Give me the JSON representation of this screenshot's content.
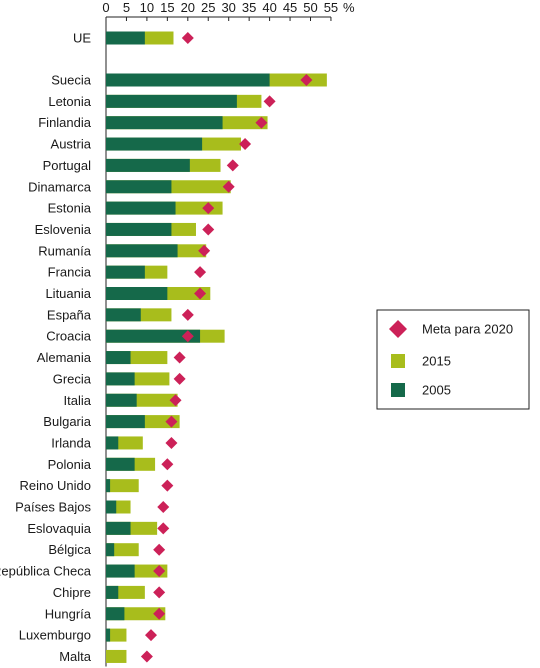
{
  "chart_data": {
    "type": "bar",
    "orientation": "horizontal",
    "stacked": false,
    "title": "",
    "xlabel": "",
    "ylabel": "",
    "unit": "%",
    "xlim": [
      0,
      55
    ],
    "xticks": [
      0,
      5,
      10,
      15,
      20,
      25,
      30,
      35,
      40,
      45,
      50,
      55
    ],
    "x_axis_position": "top",
    "grid": false,
    "legend_position": "right",
    "categories": [
      "UE",
      "Suecia",
      "Letonia",
      "Finlandia",
      "Austria",
      "Portugal",
      "Dinamarca",
      "Estonia",
      "Eslovenia",
      "Rumanía",
      "Francia",
      "Lituania",
      "España",
      "Croacia",
      "Alemania",
      "Grecia",
      "Italia",
      "Bulgaria",
      "Irlanda",
      "Polonia",
      "Reino Unido",
      "Países Bajos",
      "Eslovaquia",
      "Bélgica",
      "República Checa",
      "Chipre",
      "Hungría",
      "Luxemburgo",
      "Malta"
    ],
    "series": [
      {
        "name": "2005",
        "color": "#15694a",
        "marker": "bar",
        "values": [
          9.5,
          40.0,
          32.0,
          28.5,
          23.5,
          20.5,
          16.0,
          17.0,
          16.0,
          17.5,
          9.5,
          15.0,
          8.5,
          23.0,
          6.0,
          7.0,
          7.5,
          9.5,
          3.0,
          7.0,
          1.0,
          2.5,
          6.0,
          2.0,
          7.0,
          3.0,
          4.5,
          1.0,
          0.0
        ]
      },
      {
        "name": "2015",
        "color": "#a8bd1c",
        "marker": "bar",
        "values": [
          16.5,
          54.0,
          38.0,
          39.5,
          33.0,
          28.0,
          30.5,
          28.5,
          22.0,
          24.5,
          15.0,
          25.5,
          16.0,
          29.0,
          15.0,
          15.5,
          17.5,
          18.0,
          9.0,
          12.0,
          8.0,
          6.0,
          12.5,
          8.0,
          15.0,
          9.5,
          14.5,
          5.0,
          5.0
        ]
      },
      {
        "name": "Meta para 2020",
        "color": "#cc2158",
        "marker": "diamond",
        "values": [
          20,
          49,
          40,
          38,
          34,
          31,
          30,
          25,
          25,
          24,
          23,
          23,
          20,
          20,
          18,
          18,
          17,
          16,
          16,
          15,
          15,
          14,
          14,
          13,
          13,
          13,
          13,
          11,
          10
        ]
      }
    ]
  },
  "legend": {
    "items": [
      {
        "label": "Meta para 2020",
        "color": "#cc2158",
        "marker": "diamond"
      },
      {
        "label": "2015",
        "color": "#a8bd1c",
        "marker": "square"
      },
      {
        "label": "2005",
        "color": "#15694a",
        "marker": "square"
      }
    ]
  }
}
